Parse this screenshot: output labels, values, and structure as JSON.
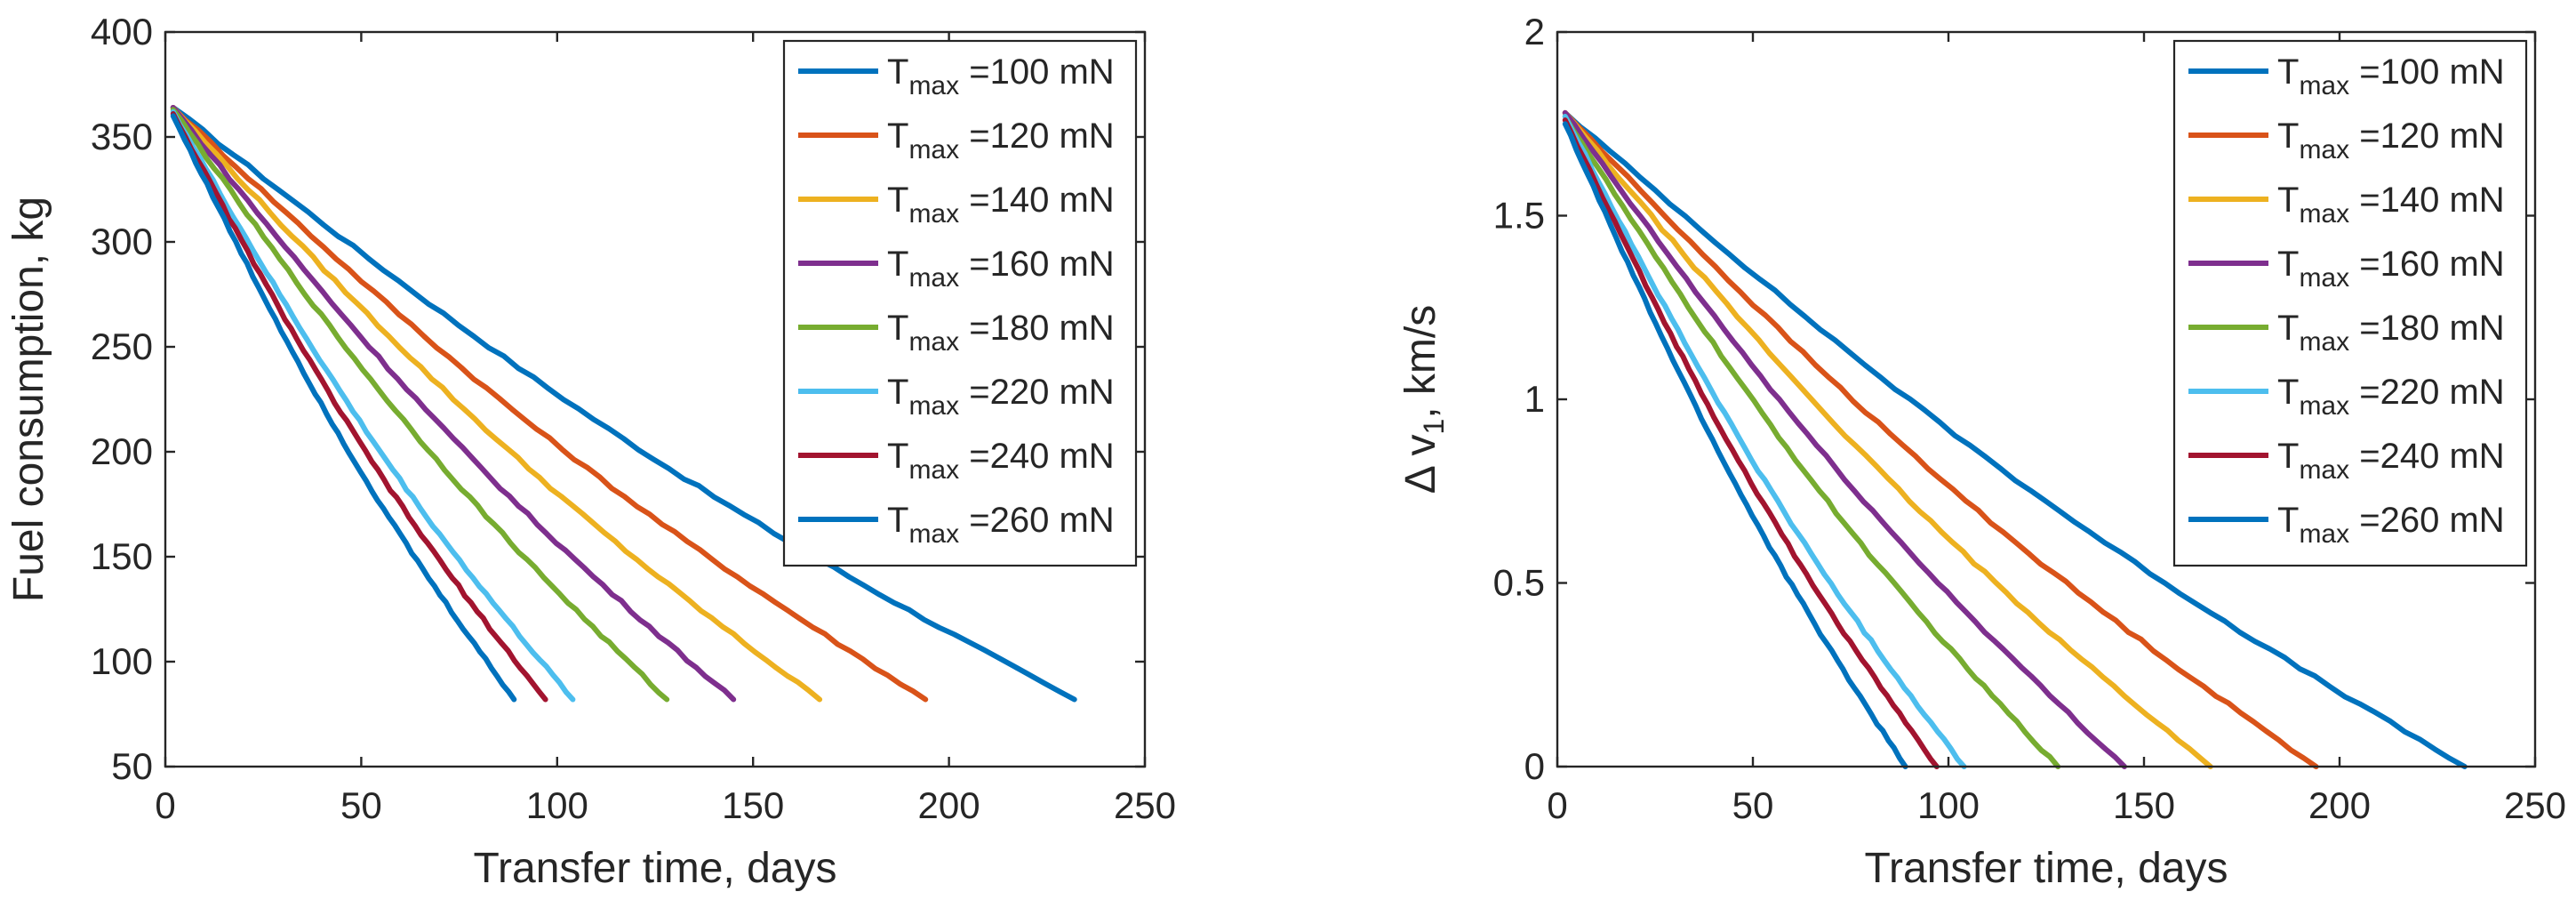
{
  "chart_data": [
    {
      "type": "line",
      "xlabel": "Transfer time, days",
      "ylabel": "Fuel consumption, kg",
      "xlim": [
        0,
        250
      ],
      "ylim": [
        50,
        400
      ],
      "xticks": [
        0,
        50,
        100,
        150,
        200,
        250
      ],
      "yticks": [
        50,
        100,
        150,
        200,
        250,
        300,
        350,
        400
      ],
      "xtick_labels": [
        "0",
        "50",
        "100",
        "150",
        "200",
        "250"
      ],
      "ytick_labels": [
        "50",
        "100",
        "150",
        "200",
        "250",
        "300",
        "350",
        "400"
      ],
      "legend_position": "top-right",
      "series": [
        {
          "name": "T_max =100 mN",
          "name_main": "T",
          "name_sub": "max",
          "name_rest": " =100 mN",
          "color": "#0072BD",
          "x": [
            2,
            232
          ],
          "y": [
            364,
            82
          ]
        },
        {
          "name": "T_max =120 mN",
          "name_main": "T",
          "name_sub": "max",
          "name_rest": " =120 mN",
          "color": "#D95319",
          "x": [
            2,
            194
          ],
          "y": [
            364,
            82
          ]
        },
        {
          "name": "T_max =140 mN",
          "name_main": "T",
          "name_sub": "max",
          "name_rest": " =140 mN",
          "color": "#EDB120",
          "x": [
            2,
            167
          ],
          "y": [
            364,
            82
          ]
        },
        {
          "name": "T_max =160 mN",
          "name_main": "T",
          "name_sub": "max",
          "name_rest": " =160 mN",
          "color": "#7E2F8E",
          "x": [
            2,
            145
          ],
          "y": [
            364,
            82
          ]
        },
        {
          "name": "T_max =180 mN",
          "name_main": "T",
          "name_sub": "max",
          "name_rest": " =180 mN",
          "color": "#77AC30",
          "x": [
            2,
            128
          ],
          "y": [
            363,
            82
          ]
        },
        {
          "name": "T_max =220 mN",
          "name_main": "T",
          "name_sub": "max",
          "name_rest": " =220 mN",
          "color": "#4DBEEE",
          "x": [
            2,
            104
          ],
          "y": [
            362,
            82
          ]
        },
        {
          "name": "T_max =240 mN",
          "name_main": "T",
          "name_sub": "max",
          "name_rest": " =240 mN",
          "color": "#A2142F",
          "x": [
            2,
            97
          ],
          "y": [
            361,
            82
          ]
        },
        {
          "name": "T_max =260 mN",
          "name_main": "T",
          "name_sub": "max",
          "name_rest": " =260 mN",
          "color": "#0072BD",
          "x": [
            2,
            89
          ],
          "y": [
            360,
            82
          ]
        }
      ]
    },
    {
      "type": "line",
      "xlabel": "Transfer time, days",
      "ylabel": "Δ v_1, km/s",
      "ylabel_main": "Δ v",
      "ylabel_sub": "1",
      "ylabel_rest": ", km/s",
      "xlim": [
        0,
        250
      ],
      "ylim": [
        0,
        2
      ],
      "xticks": [
        0,
        50,
        100,
        150,
        200,
        250
      ],
      "yticks": [
        0,
        0.5,
        1,
        1.5,
        2
      ],
      "xtick_labels": [
        "0",
        "50",
        "100",
        "150",
        "200",
        "250"
      ],
      "ytick_labels": [
        "0",
        "0.5",
        "1",
        "1.5",
        "2"
      ],
      "legend_position": "top-right",
      "series": [
        {
          "name": "T_max =100 mN",
          "name_main": "T",
          "name_sub": "max",
          "name_rest": " =100 mN",
          "color": "#0072BD",
          "x": [
            2,
            232
          ],
          "y": [
            1.78,
            0
          ]
        },
        {
          "name": "T_max =120 mN",
          "name_main": "T",
          "name_sub": "max",
          "name_rest": " =120 mN",
          "color": "#D95319",
          "x": [
            2,
            194
          ],
          "y": [
            1.78,
            0
          ]
        },
        {
          "name": "T_max =140 mN",
          "name_main": "T",
          "name_sub": "max",
          "name_rest": " =140 mN",
          "color": "#EDB120",
          "x": [
            2,
            167
          ],
          "y": [
            1.78,
            0
          ]
        },
        {
          "name": "T_max =160 mN",
          "name_main": "T",
          "name_sub": "max",
          "name_rest": " =160 mN",
          "color": "#7E2F8E",
          "x": [
            2,
            145
          ],
          "y": [
            1.78,
            0
          ]
        },
        {
          "name": "T_max =180 mN",
          "name_main": "T",
          "name_sub": "max",
          "name_rest": " =180 mN",
          "color": "#77AC30",
          "x": [
            2,
            128
          ],
          "y": [
            1.77,
            0
          ]
        },
        {
          "name": "T_max =220 mN",
          "name_main": "T",
          "name_sub": "max",
          "name_rest": " =220 mN",
          "color": "#4DBEEE",
          "x": [
            2,
            104
          ],
          "y": [
            1.77,
            0
          ]
        },
        {
          "name": "T_max =240 mN",
          "name_main": "T",
          "name_sub": "max",
          "name_rest": " =240 mN",
          "color": "#A2142F",
          "x": [
            2,
            97
          ],
          "y": [
            1.76,
            0
          ]
        },
        {
          "name": "T_max =260 mN",
          "name_main": "T",
          "name_sub": "max",
          "name_rest": " =260 mN",
          "color": "#0072BD",
          "x": [
            2,
            89
          ],
          "y": [
            1.75,
            0
          ]
        }
      ]
    }
  ]
}
